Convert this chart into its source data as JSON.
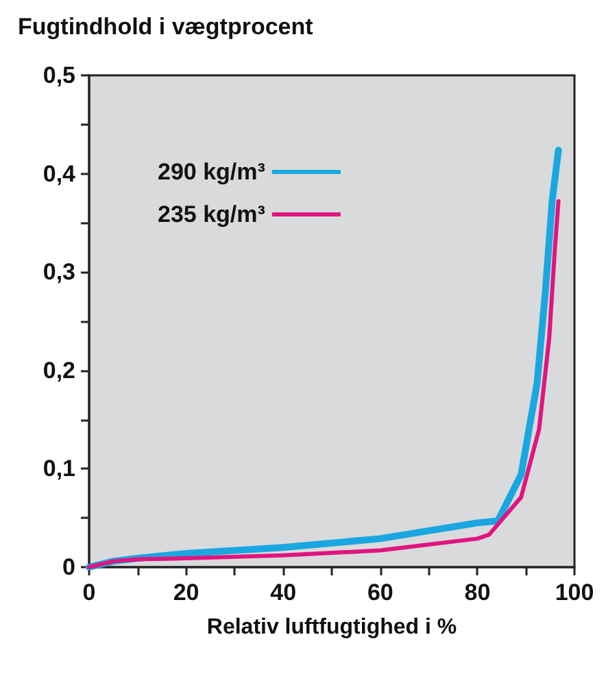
{
  "chart_data": {
    "type": "line",
    "title": "Fugtindhold i vægtprocent",
    "xlabel": "Relativ luftfugtighed i %",
    "series": [
      {
        "name": "290 kg/m³",
        "color": "#1aa7e0",
        "x": [
          0,
          5,
          10,
          20,
          40,
          60,
          80,
          84.2,
          89,
          92.3,
          94,
          95.4,
          96.7
        ],
        "values": [
          0,
          0.006,
          0.009,
          0.014,
          0.02,
          0.029,
          0.045,
          0.047,
          0.094,
          0.187,
          0.28,
          0.372,
          0.424
        ]
      },
      {
        "name": "235 kg/m³",
        "color": "#e0157f",
        "x": [
          0,
          5,
          10,
          20,
          40,
          60,
          80,
          82.4,
          89,
          92.7,
          94.8,
          96,
          96.7
        ],
        "values": [
          0,
          0.006,
          0.008,
          0.009,
          0.012,
          0.017,
          0.029,
          0.033,
          0.071,
          0.14,
          0.233,
          0.326,
          0.372
        ]
      }
    ],
    "xlim": [
      0,
      100
    ],
    "ylim": [
      0,
      0.5
    ],
    "xticks": [
      0,
      {
        "value": 10,
        "label": null
      },
      20,
      {
        "value": 30,
        "label": null
      },
      40,
      {
        "value": 50,
        "label": null
      },
      60,
      {
        "value": 70,
        "label": null
      },
      80,
      {
        "value": 90,
        "label": null
      },
      100
    ],
    "yticks": [
      {
        "value": 0,
        "label": "0"
      },
      {
        "value": 0.05,
        "label": null
      },
      {
        "value": 0.1,
        "label": "0,1"
      },
      {
        "value": 0.15,
        "label": null
      },
      {
        "value": 0.2,
        "label": "0,2"
      },
      {
        "value": 0.25,
        "label": null
      },
      {
        "value": 0.3,
        "label": "0,3"
      },
      {
        "value": 0.35,
        "label": null
      },
      {
        "value": 0.4,
        "label": "0,4"
      },
      {
        "value": 0.45,
        "label": null
      },
      {
        "value": 0.5,
        "label": "0,5"
      }
    ],
    "grid": false,
    "legend": "top left",
    "marker": "none",
    "line_style": "solid"
  }
}
